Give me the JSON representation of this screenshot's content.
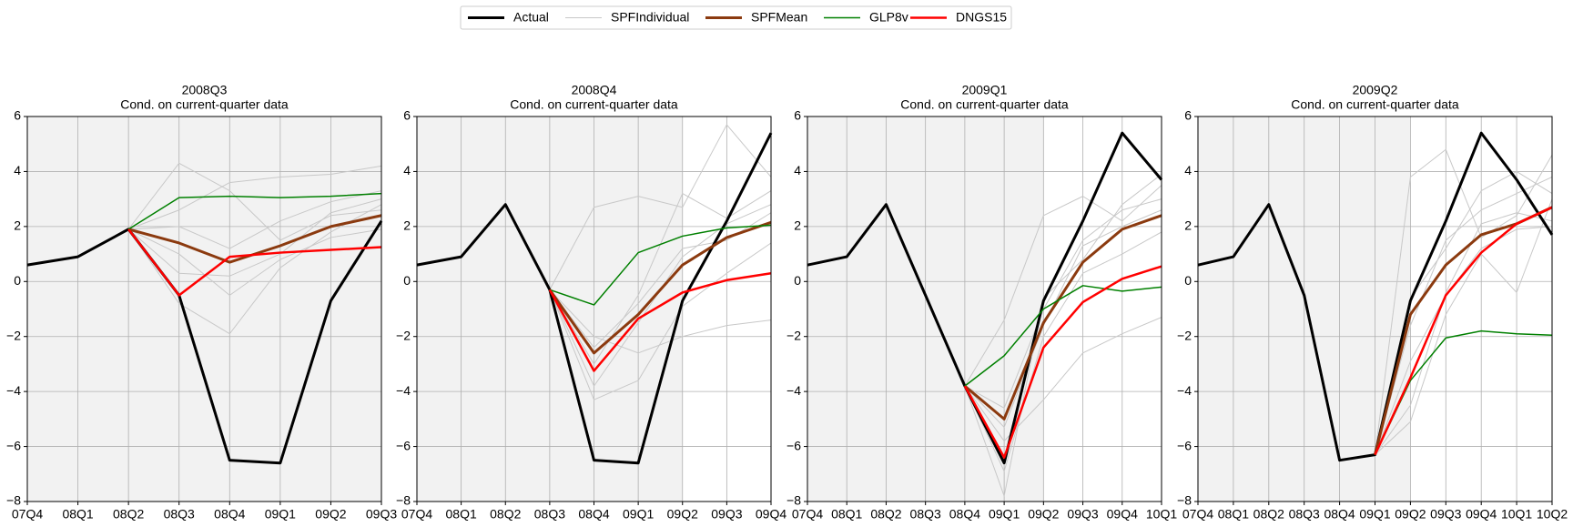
{
  "legend": "upper center",
  "chart_data": [
    {
      "type": "line",
      "title": "2008Q3",
      "subtitle": "Cond. on current-quarter data",
      "categories": [
        "07Q4",
        "08Q1",
        "08Q2",
        "08Q3",
        "08Q4",
        "09Q1",
        "09Q2",
        "09Q3"
      ],
      "ylim": [
        -8,
        6
      ],
      "yticks": [
        {
          "value": -8,
          "label": "−8"
        },
        {
          "value": -6,
          "label": "−6"
        },
        {
          "value": -4,
          "label": "−4"
        },
        {
          "value": -2,
          "label": "−2"
        },
        0,
        2,
        4,
        6
      ],
      "grid": true,
      "shaded_through": "09Q3",
      "series": [
        {
          "name": "Actual",
          "color": "#000000",
          "linewidth": 3,
          "values": [
            0.6,
            0.9,
            1.9,
            -0.5,
            -6.5,
            -6.6,
            -0.7,
            2.2
          ]
        },
        {
          "name": "SPFIndividual",
          "color": "#c8c8c8",
          "linewidth": 1,
          "lines": [
            [
              null,
              null,
              1.9,
              4.3,
              3.3,
              1.5,
              2.4,
              2.6
            ],
            [
              null,
              null,
              1.9,
              -0.8,
              -1.9,
              0.5,
              1.8,
              2.8
            ],
            [
              null,
              null,
              1.9,
              2.6,
              3.6,
              3.8,
              3.9,
              4.2
            ],
            [
              null,
              null,
              1.9,
              1.0,
              -0.5,
              0.8,
              1.6,
              1.9
            ],
            [
              null,
              null,
              1.9,
              0.3,
              0.2,
              1.0,
              2.5,
              3.0
            ],
            [
              null,
              null,
              1.9,
              2.0,
              1.2,
              2.2,
              2.9,
              3.3
            ]
          ]
        },
        {
          "name": "SPFMean",
          "color": "#8b3a0f",
          "linewidth": 3,
          "values": [
            null,
            null,
            1.9,
            1.4,
            0.7,
            1.3,
            2.0,
            2.4
          ]
        },
        {
          "name": "GLP8v",
          "color": "#008000",
          "linewidth": 1.5,
          "values": [
            null,
            null,
            1.9,
            3.05,
            3.1,
            3.05,
            3.1,
            3.2
          ]
        },
        {
          "name": "DNGS15",
          "color": "#ff0000",
          "linewidth": 2.5,
          "values": [
            null,
            null,
            1.9,
            -0.5,
            0.9,
            1.05,
            1.15,
            1.25
          ]
        }
      ]
    },
    {
      "type": "line",
      "title": "2008Q4",
      "subtitle": "Cond. on current-quarter data",
      "categories": [
        "07Q4",
        "08Q1",
        "08Q2",
        "08Q3",
        "08Q4",
        "09Q1",
        "09Q2",
        "09Q3",
        "09Q4"
      ],
      "ylim": [
        -8,
        6
      ],
      "yticks": [
        {
          "value": -8,
          "label": "−8"
        },
        {
          "value": -6,
          "label": "−6"
        },
        {
          "value": -4,
          "label": "−4"
        },
        {
          "value": -2,
          "label": "−2"
        },
        0,
        2,
        4,
        6
      ],
      "grid": true,
      "shaded_through": "09Q2",
      "series": [
        {
          "name": "Actual",
          "color": "#000000",
          "linewidth": 3,
          "values": [
            0.6,
            0.9,
            2.8,
            -0.3,
            -6.5,
            -6.6,
            -0.7,
            2.2,
            5.4
          ]
        },
        {
          "name": "SPFIndividual",
          "color": "#c8c8c8",
          "linewidth": 1,
          "lines": [
            [
              null,
              null,
              null,
              -0.3,
              2.7,
              3.1,
              2.7,
              5.7,
              3.8
            ],
            [
              null,
              null,
              null,
              -0.3,
              -4.3,
              -3.6,
              -0.9,
              0.3,
              1.4
            ],
            [
              null,
              null,
              null,
              -0.3,
              -3.0,
              -0.5,
              3.2,
              2.3,
              3.3
            ],
            [
              null,
              null,
              null,
              -0.3,
              -2.0,
              -2.6,
              -2.0,
              -1.6,
              -1.4
            ],
            [
              null,
              null,
              null,
              -0.3,
              -3.8,
              -1.5,
              0.9,
              2.1,
              2.8
            ],
            [
              null,
              null,
              null,
              -0.3,
              -2.4,
              -0.8,
              1.2,
              1.5,
              2.5
            ]
          ]
        },
        {
          "name": "SPFMean",
          "color": "#8b3a0f",
          "linewidth": 3,
          "values": [
            null,
            null,
            null,
            -0.3,
            -2.6,
            -1.2,
            0.6,
            1.6,
            2.15
          ]
        },
        {
          "name": "GLP8v",
          "color": "#008000",
          "linewidth": 1.5,
          "values": [
            null,
            null,
            null,
            -0.3,
            -0.85,
            1.05,
            1.65,
            1.95,
            2.05
          ]
        },
        {
          "name": "DNGS15",
          "color": "#ff0000",
          "linewidth": 2.5,
          "values": [
            null,
            null,
            null,
            -0.3,
            -3.25,
            -1.35,
            -0.4,
            0.05,
            0.3
          ]
        }
      ]
    },
    {
      "type": "line",
      "title": "2009Q1",
      "subtitle": "Cond. on current-quarter data",
      "categories": [
        "07Q4",
        "08Q1",
        "08Q2",
        "08Q3",
        "08Q4",
        "09Q1",
        "09Q2",
        "09Q3",
        "09Q4",
        "10Q1"
      ],
      "ylim": [
        -8,
        6
      ],
      "yticks": [
        {
          "value": -8,
          "label": "−8"
        },
        {
          "value": -6,
          "label": "−6"
        },
        {
          "value": -4,
          "label": "−4"
        },
        {
          "value": -2,
          "label": "−2"
        },
        0,
        2,
        4,
        6
      ],
      "grid": true,
      "shaded_through": "09Q2",
      "series": [
        {
          "name": "Actual",
          "color": "#000000",
          "linewidth": 3,
          "values": [
            0.6,
            0.9,
            2.8,
            -0.5,
            -3.8,
            -6.6,
            -0.7,
            2.2,
            5.4,
            3.7
          ]
        },
        {
          "name": "SPFIndividual",
          "color": "#c8c8c8",
          "linewidth": 1,
          "lines": [
            [
              null,
              null,
              null,
              null,
              -3.8,
              -7.8,
              -0.6,
              0.8,
              2.8,
              3.9
            ],
            [
              null,
              null,
              null,
              null,
              -3.8,
              -1.4,
              2.4,
              3.1,
              2.2,
              3.5
            ],
            [
              null,
              null,
              null,
              null,
              -3.8,
              -5.8,
              -4.3,
              -2.6,
              -1.9,
              -1.3
            ],
            [
              null,
              null,
              null,
              null,
              -3.8,
              -4.6,
              -1.0,
              1.5,
              2.6,
              3.0
            ],
            [
              null,
              null,
              null,
              null,
              -3.8,
              -6.9,
              -2.0,
              0.3,
              1.0,
              1.8
            ],
            [
              null,
              null,
              null,
              null,
              -3.8,
              -5.3,
              -1.6,
              1.3,
              2.0,
              2.6
            ]
          ]
        },
        {
          "name": "SPFMean",
          "color": "#8b3a0f",
          "linewidth": 3,
          "values": [
            null,
            null,
            null,
            null,
            -3.8,
            -5.0,
            -1.5,
            0.7,
            1.9,
            2.4
          ]
        },
        {
          "name": "GLP8v",
          "color": "#008000",
          "linewidth": 1.5,
          "values": [
            null,
            null,
            null,
            null,
            -3.8,
            -2.7,
            -1.0,
            -0.15,
            -0.35,
            -0.2
          ]
        },
        {
          "name": "DNGS15",
          "color": "#ff0000",
          "linewidth": 2.5,
          "values": [
            null,
            null,
            null,
            null,
            -3.8,
            -6.4,
            -2.4,
            -0.75,
            0.1,
            0.55
          ]
        }
      ]
    },
    {
      "type": "line",
      "title": "2009Q2",
      "subtitle": "Cond. on current-quarter data",
      "categories": [
        "07Q4",
        "08Q1",
        "08Q2",
        "08Q3",
        "08Q4",
        "09Q1",
        "09Q2",
        "09Q3",
        "09Q4",
        "10Q1",
        "10Q2"
      ],
      "ylim": [
        -8,
        6
      ],
      "yticks": [
        {
          "value": -8,
          "label": "−8"
        },
        {
          "value": -6,
          "label": "−6"
        },
        {
          "value": -4,
          "label": "−4"
        },
        {
          "value": -2,
          "label": "−2"
        },
        0,
        2,
        4,
        6
      ],
      "grid": true,
      "shaded_through": "09Q2",
      "series": [
        {
          "name": "Actual",
          "color": "#000000",
          "linewidth": 3,
          "values": [
            0.6,
            0.9,
            2.8,
            -0.5,
            -6.5,
            -6.3,
            -0.7,
            2.2,
            5.4,
            3.7,
            1.7
          ]
        },
        {
          "name": "SPFIndividual",
          "color": "#c8c8c8",
          "linewidth": 1,
          "lines": [
            [
              null,
              null,
              null,
              null,
              null,
              -6.3,
              3.8,
              4.8,
              1.6,
              2.4,
              4.6
            ],
            [
              null,
              null,
              null,
              null,
              null,
              -6.3,
              -5.1,
              -1.2,
              1.0,
              -0.4,
              3.0
            ],
            [
              null,
              null,
              null,
              null,
              null,
              -6.3,
              -0.6,
              1.2,
              3.3,
              4.0,
              3.2
            ],
            [
              null,
              null,
              null,
              null,
              null,
              -6.3,
              -2.9,
              -0.5,
              1.2,
              1.9,
              2.0
            ],
            [
              null,
              null,
              null,
              null,
              null,
              -6.3,
              -1.6,
              1.5,
              2.6,
              3.2,
              3.8
            ],
            [
              null,
              null,
              null,
              null,
              null,
              -6.3,
              -4.5,
              -0.4,
              2.1,
              2.5,
              2.2
            ]
          ]
        },
        {
          "name": "SPFMean",
          "color": "#8b3a0f",
          "linewidth": 3,
          "values": [
            null,
            null,
            null,
            null,
            null,
            -6.3,
            -1.2,
            0.6,
            1.7,
            2.1,
            2.7
          ]
        },
        {
          "name": "GLP8v",
          "color": "#008000",
          "linewidth": 1.5,
          "values": [
            null,
            null,
            null,
            null,
            null,
            -6.3,
            -3.6,
            -2.05,
            -1.8,
            -1.9,
            -1.95
          ]
        },
        {
          "name": "DNGS15",
          "color": "#ff0000",
          "linewidth": 2.5,
          "values": [
            null,
            null,
            null,
            null,
            null,
            -6.3,
            -3.5,
            -0.5,
            1.05,
            2.1,
            2.7
          ]
        }
      ]
    }
  ]
}
